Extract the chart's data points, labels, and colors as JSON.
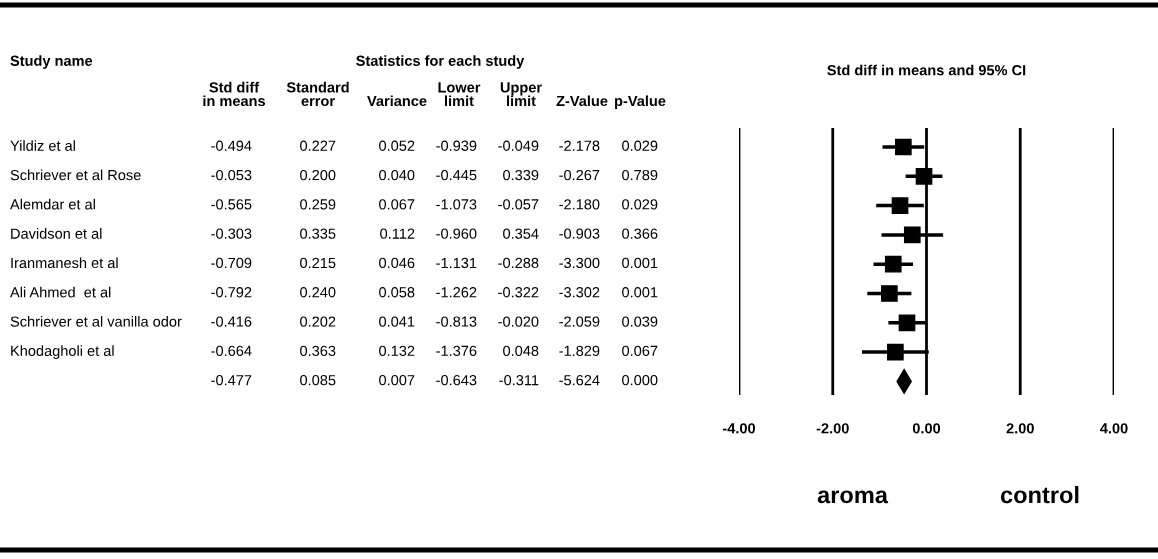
{
  "chart_data": [
    {
      "type": "other",
      "title": "Statistics for each study",
      "ylabel": "Study name",
      "categories": [
        "Std diff\nin means",
        "Standard\nerror",
        "Variance",
        "Lower\nlimit",
        "Upper\nlimit",
        "Z-Value",
        "p-Value"
      ],
      "y_categories": [
        "Yildiz et al",
        "Schriever et al Rose",
        "Alemdar et al",
        "Davidson et al",
        "Iranmanesh et al",
        "Ali Ahmed  et al",
        "Schriever et al vanilla odor",
        "Khodagholi et al",
        null
      ],
      "cell_labels": [
        [
          "-0.494",
          "0.227",
          "0.052",
          "-0.939",
          "-0.049",
          "-2.178",
          "0.029"
        ],
        [
          "-0.053",
          "0.200",
          "0.040",
          "-0.445",
          "0.339",
          "-0.267",
          "0.789"
        ],
        [
          "-0.565",
          "0.259",
          "0.067",
          "-1.073",
          "-0.057",
          "-2.180",
          "0.029"
        ],
        [
          "-0.303",
          "0.335",
          "0.112",
          "-0.960",
          "0.354",
          "-0.903",
          "0.366"
        ],
        [
          "-0.709",
          "0.215",
          "0.046",
          "-1.131",
          "-0.288",
          "-3.300",
          "0.001"
        ],
        [
          "-0.792",
          "0.240",
          "0.058",
          "-1.262",
          "-0.322",
          "-3.302",
          "0.001"
        ],
        [
          "-0.416",
          "0.202",
          "0.041",
          "-0.813",
          "-0.020",
          "-2.059",
          "0.039"
        ],
        [
          "-0.664",
          "0.363",
          "0.132",
          "-1.376",
          "0.048",
          "-1.829",
          "0.067"
        ],
        [
          "-0.477",
          "0.085",
          "0.007",
          "-0.643",
          "-0.311",
          "-5.624",
          "0.000"
        ]
      ]
    },
    {
      "type": "scatter",
      "orientation": "horizontal",
      "title": "Std diff in means and 95% CI",
      "tick_labels": "x",
      "grid": "x",
      "xlim": [
        -4,
        4
      ],
      "xticks": [
        {
          "value": -4,
          "label": "-4.00"
        },
        {
          "value": -2,
          "label": "-2.00"
        },
        {
          "value": 0,
          "label": "0.00"
        },
        {
          "value": 2,
          "label": "2.00"
        },
        {
          "value": 4,
          "label": "4.00"
        }
      ],
      "annotations": [
        "aroma",
        "control"
      ],
      "series": [
        {
          "type": "scatter",
          "marker": "square",
          "color": "#000000",
          "values": [
            -0.494,
            -0.053,
            -0.565,
            -0.303,
            -0.709,
            -0.792,
            -0.416,
            -0.664,
            null
          ],
          "errors": [
            [
              -0.939,
              -0.049
            ],
            [
              -0.445,
              0.339
            ],
            [
              -1.073,
              -0.057
            ],
            [
              -0.96,
              0.354
            ],
            [
              -1.131,
              -0.288
            ],
            [
              -1.262,
              -0.322
            ],
            [
              -0.813,
              -0.02
            ],
            [
              -1.376,
              0.048
            ],
            null
          ]
        },
        {
          "type": "scatter",
          "marker": "diamond",
          "color": "#000000",
          "values": [
            null,
            null,
            null,
            null,
            null,
            null,
            null,
            null,
            -0.477
          ]
        }
      ]
    }
  ]
}
